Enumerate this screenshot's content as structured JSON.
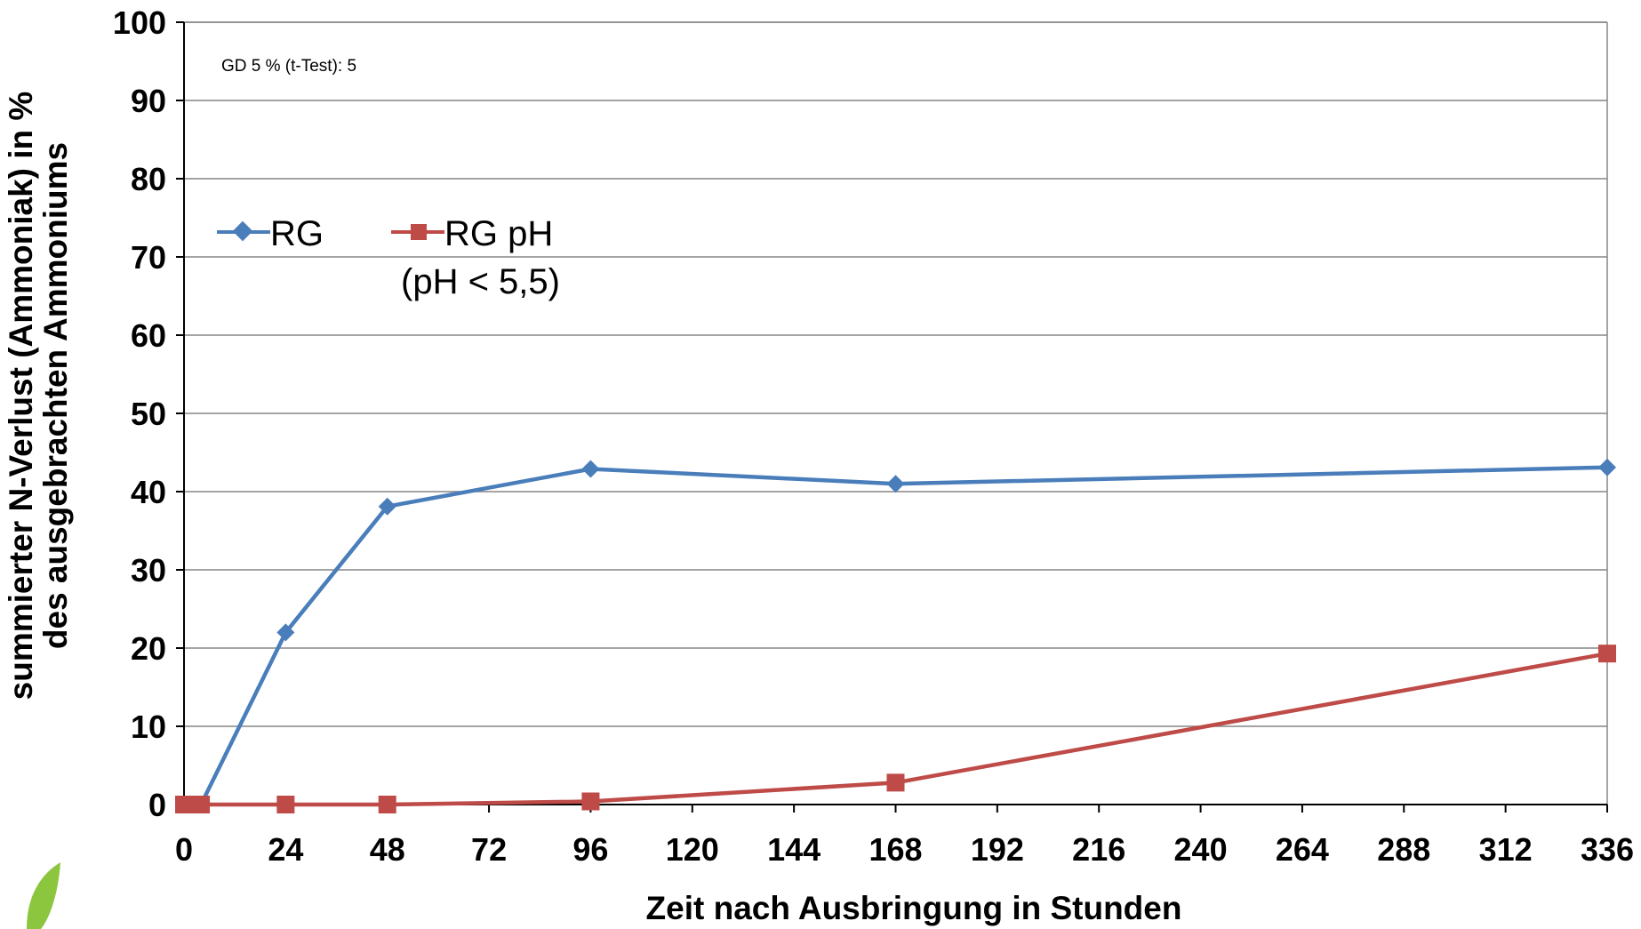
{
  "chart_data": {
    "type": "line",
    "annotation": "GD 5 % (t-Test): 5",
    "xlabel": "Zeit nach Ausbringung in Stunden",
    "ylabel_line1": "summierter N-Verlust (Ammoniak) in %",
    "ylabel_line2": "des ausgebrachten Ammoniums",
    "xlim": [
      0,
      336
    ],
    "ylim": [
      0,
      100
    ],
    "x_ticks": [
      0,
      24,
      48,
      72,
      96,
      120,
      144,
      168,
      192,
      216,
      240,
      264,
      288,
      312,
      336
    ],
    "y_ticks": [
      0,
      10,
      20,
      30,
      40,
      50,
      60,
      70,
      80,
      90,
      100
    ],
    "grid": "horizontal",
    "legend_position": "upper-left",
    "series": [
      {
        "name": "RG",
        "color": "#4a7ebb",
        "marker": "diamond",
        "x": [
          0,
          4,
          24,
          48,
          96,
          168,
          336
        ],
        "values": [
          0,
          0,
          22,
          38.1,
          42.9,
          41,
          43.1
        ]
      },
      {
        "name": "RG pH",
        "name_line2": "(pH < 5,5)",
        "color": "#be4b48",
        "marker": "square",
        "x": [
          0,
          4,
          24,
          48,
          96,
          168,
          336
        ],
        "values": [
          0,
          0,
          0,
          0,
          0.4,
          2.8,
          19.3
        ]
      }
    ]
  },
  "logo": {
    "icon": "leaf-icon",
    "color": "#8cc63f"
  }
}
